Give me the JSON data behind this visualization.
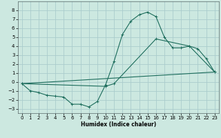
{
  "xlabel": "Humidex (Indice chaleur)",
  "background_color": "#cce8e0",
  "grid_color": "#aacccc",
  "line_color": "#1a6b5a",
  "xlim": [
    -0.5,
    23.5
  ],
  "ylim": [
    -3.5,
    9.0
  ],
  "yticks": [
    -3,
    -2,
    -1,
    0,
    1,
    2,
    3,
    4,
    5,
    6,
    7,
    8
  ],
  "xticks": [
    0,
    1,
    2,
    3,
    4,
    5,
    6,
    7,
    8,
    9,
    10,
    11,
    12,
    13,
    14,
    15,
    16,
    17,
    18,
    19,
    20,
    21,
    22,
    23
  ],
  "line1_x": [
    0,
    1,
    2,
    3,
    4,
    5,
    6,
    7,
    8,
    9,
    10,
    11,
    12,
    13,
    14,
    15,
    16,
    17,
    18,
    19,
    20,
    21,
    22,
    23
  ],
  "line1_y": [
    -0.2,
    -1.0,
    -1.2,
    -1.5,
    -1.6,
    -1.7,
    -2.5,
    -2.5,
    -2.8,
    -2.2,
    -0.3,
    2.3,
    5.3,
    6.8,
    7.5,
    7.8,
    7.3,
    5.0,
    3.8,
    3.8,
    4.0,
    3.7,
    2.6,
    1.1
  ],
  "line2_x": [
    0,
    23
  ],
  "line2_y": [
    -0.2,
    1.1
  ],
  "line3_x": [
    0,
    10,
    11,
    16,
    20,
    23
  ],
  "line3_y": [
    -0.2,
    -0.5,
    -0.2,
    4.8,
    4.0,
    1.1
  ],
  "marker": "+"
}
